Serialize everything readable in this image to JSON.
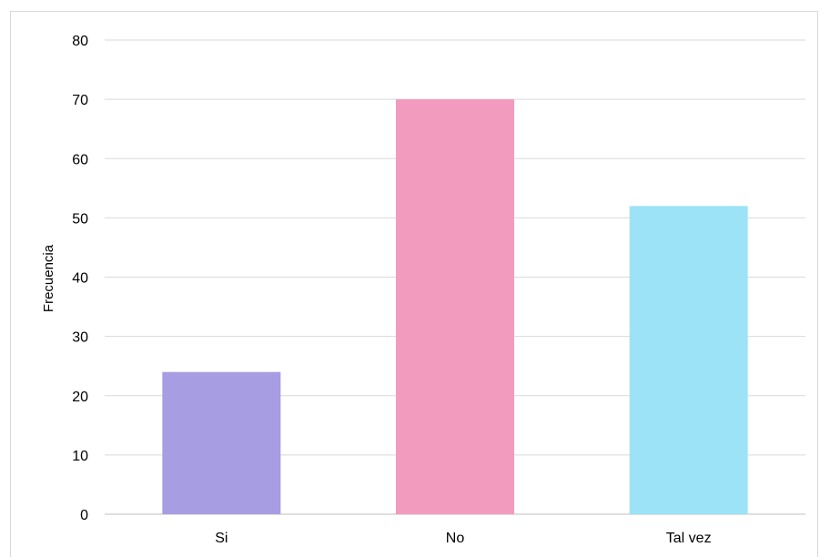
{
  "chart_data": {
    "type": "bar",
    "title": "",
    "xlabel": "",
    "ylabel": "Frecuencia",
    "categories": [
      "Si",
      "No",
      "Tal vez"
    ],
    "values": [
      24,
      70,
      52
    ],
    "colors": [
      "#a79de2",
      "#f29bbe",
      "#9ce3f8"
    ],
    "ylim": [
      0,
      80
    ],
    "yticks": [
      0,
      10,
      20,
      30,
      40,
      50,
      60,
      70,
      80
    ],
    "grid": true,
    "legend": "none"
  }
}
